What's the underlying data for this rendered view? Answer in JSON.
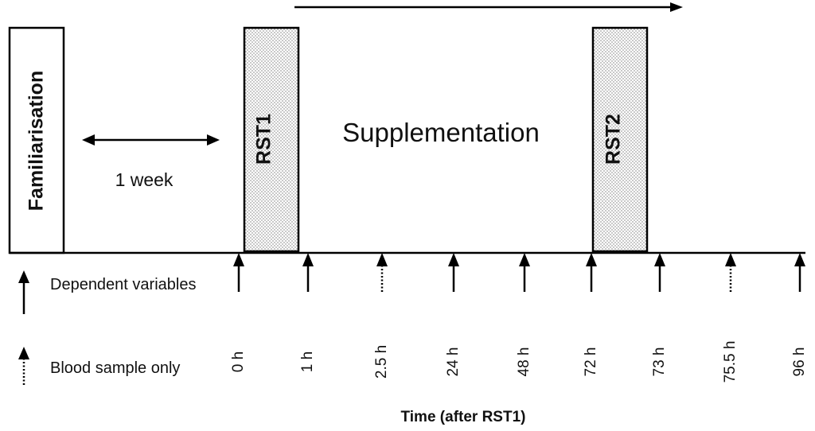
{
  "boxes": {
    "familiarisation": "Familiarisation",
    "rst1": "RST1",
    "rst2": "RST2"
  },
  "labels": {
    "supplementation": "Supplementation",
    "gap": "1 week",
    "axis_title": "Time (after RST1)"
  },
  "legend": {
    "solid": "Dependent variables",
    "dotted": "Blood sample only"
  },
  "timepoints": [
    {
      "label": "0 h",
      "type": "solid"
    },
    {
      "label": "1 h",
      "type": "solid"
    },
    {
      "label": "2.5 h",
      "type": "dotted"
    },
    {
      "label": "24 h",
      "type": "solid"
    },
    {
      "label": "48 h",
      "type": "solid"
    },
    {
      "label": "72 h",
      "type": "solid"
    },
    {
      "label": "73 h",
      "type": "solid"
    },
    {
      "label": "75.5 h",
      "type": "dotted"
    },
    {
      "label": "96 h",
      "type": "solid"
    }
  ]
}
